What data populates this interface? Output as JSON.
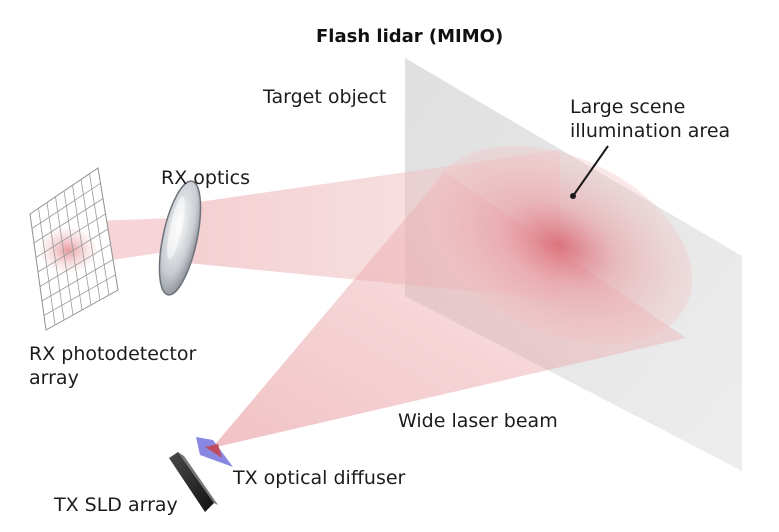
{
  "title": "Flash lidar (MIMO)",
  "labels": {
    "target_object": "Target object",
    "illumination_line1": "Large scene",
    "illumination_line2": "illumination area",
    "rx_optics": "RX optics",
    "rx_array_line1": "RX photodetector",
    "rx_array_line2": "array",
    "wide_beam": "Wide laser beam",
    "tx_diffuser": "TX optical diffuser",
    "tx_sld": "TX SLD array"
  },
  "colors": {
    "beam": "#e8a0a0",
    "spot_center": "#d9666f",
    "target_plane": "#e4e4e4",
    "diffuser": "#7b7be0",
    "sld_array": "#2a2a2a",
    "grid": "#9a9a9a",
    "text": "#1c1c1c"
  }
}
